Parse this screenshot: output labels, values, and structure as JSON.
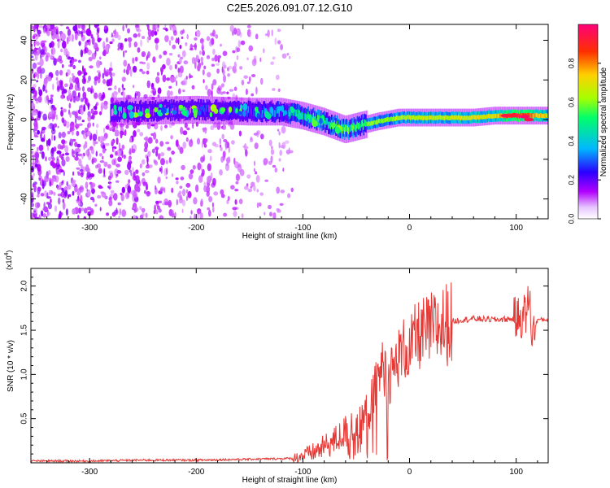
{
  "title": "C2E5.2026.091.07.12.G10",
  "chart_data": [
    {
      "type": "heatmap",
      "title": "C2E5.2026.091.07.12.G10",
      "xlabel": "Height of straight line (km)",
      "ylabel": "Frequency (Hz)",
      "xlim": [
        -355,
        130
      ],
      "ylim": [
        -50,
        48
      ],
      "xticks": [
        -300,
        -200,
        -100,
        0,
        100
      ],
      "yticks": [
        -40,
        -20,
        0,
        20,
        40
      ],
      "xtick_labels": [
        "-300",
        "-200",
        "-100",
        "0",
        "100"
      ],
      "ytick_labels": [
        "-40",
        "-20",
        "0",
        "20",
        "40"
      ],
      "colorbar": {
        "label": "Normalized spectral amplitude",
        "range": [
          0,
          1
        ],
        "ticks": [
          0.0,
          0.2,
          0.4,
          0.6,
          0.8
        ],
        "tick_labels": [
          "0.0",
          "0.2",
          "0.4",
          "0.6",
          "0.8"
        ],
        "colormap": [
          "#ffffff",
          "#b100ff",
          "#2a00ff",
          "#00b7ff",
          "#00ff6a",
          "#a6ff00",
          "#ffd000",
          "#ff3000",
          "#ff007a"
        ]
      },
      "ridge": {
        "x": [
          -280,
          -200,
          -150,
          -120,
          -100,
          -80,
          -60,
          -45,
          -30,
          -20,
          -10,
          0,
          20,
          40,
          60,
          80,
          100,
          120,
          130
        ],
        "frequency_hz": [
          4,
          5,
          4,
          4,
          2,
          -1,
          -5,
          -3,
          -1,
          0,
          1,
          1,
          1,
          1,
          1,
          2,
          2,
          2,
          2
        ],
        "amplitude": [
          0.15,
          0.2,
          0.25,
          0.3,
          0.4,
          0.45,
          0.5,
          0.55,
          0.6,
          0.62,
          0.65,
          0.65,
          0.66,
          0.68,
          0.7,
          0.72,
          0.95,
          0.75,
          0.7
        ]
      },
      "noise_extent_x": [
        -355,
        -110
      ]
    },
    {
      "type": "line",
      "xlabel": "Height of straight line (km)",
      "ylabel": "SNR (10 * v/v)",
      "scale_label": "(x10",
      "scale_exp": "4",
      "xlim": [
        -355,
        130
      ],
      "ylim": [
        0,
        2.2
      ],
      "xticks": [
        -300,
        -200,
        -100,
        0,
        100
      ],
      "yticks": [
        0.5,
        1.0,
        1.5,
        2.0
      ],
      "xtick_labels": [
        "-300",
        "-200",
        "-100",
        "0",
        "100"
      ],
      "ytick_labels": [
        "0.5",
        "1.0",
        "1.5",
        "2.0"
      ],
      "color": "#e53935",
      "series": [
        {
          "name": "SNR",
          "x": [
            -355,
            -300,
            -250,
            -200,
            -150,
            -110,
            -100,
            -90,
            -80,
            -70,
            -60,
            -55,
            -50,
            -45,
            -40,
            -35,
            -30,
            -25,
            -20,
            -15,
            -10,
            -5,
            0,
            5,
            10,
            20,
            30,
            40,
            50,
            60,
            80,
            100,
            105,
            110,
            112,
            115,
            120,
            130
          ],
          "y": [
            0.02,
            0.02,
            0.03,
            0.03,
            0.04,
            0.05,
            0.08,
            0.12,
            0.18,
            0.25,
            0.35,
            0.4,
            0.3,
            0.45,
            0.55,
            0.7,
            0.95,
            1.1,
            0.95,
            1.05,
            1.2,
            1.3,
            1.25,
            1.4,
            1.45,
            1.5,
            1.55,
            1.6,
            1.62,
            1.63,
            1.62,
            1.63,
            1.65,
            1.7,
            1.9,
            1.45,
            1.62,
            1.62
          ]
        }
      ]
    }
  ]
}
